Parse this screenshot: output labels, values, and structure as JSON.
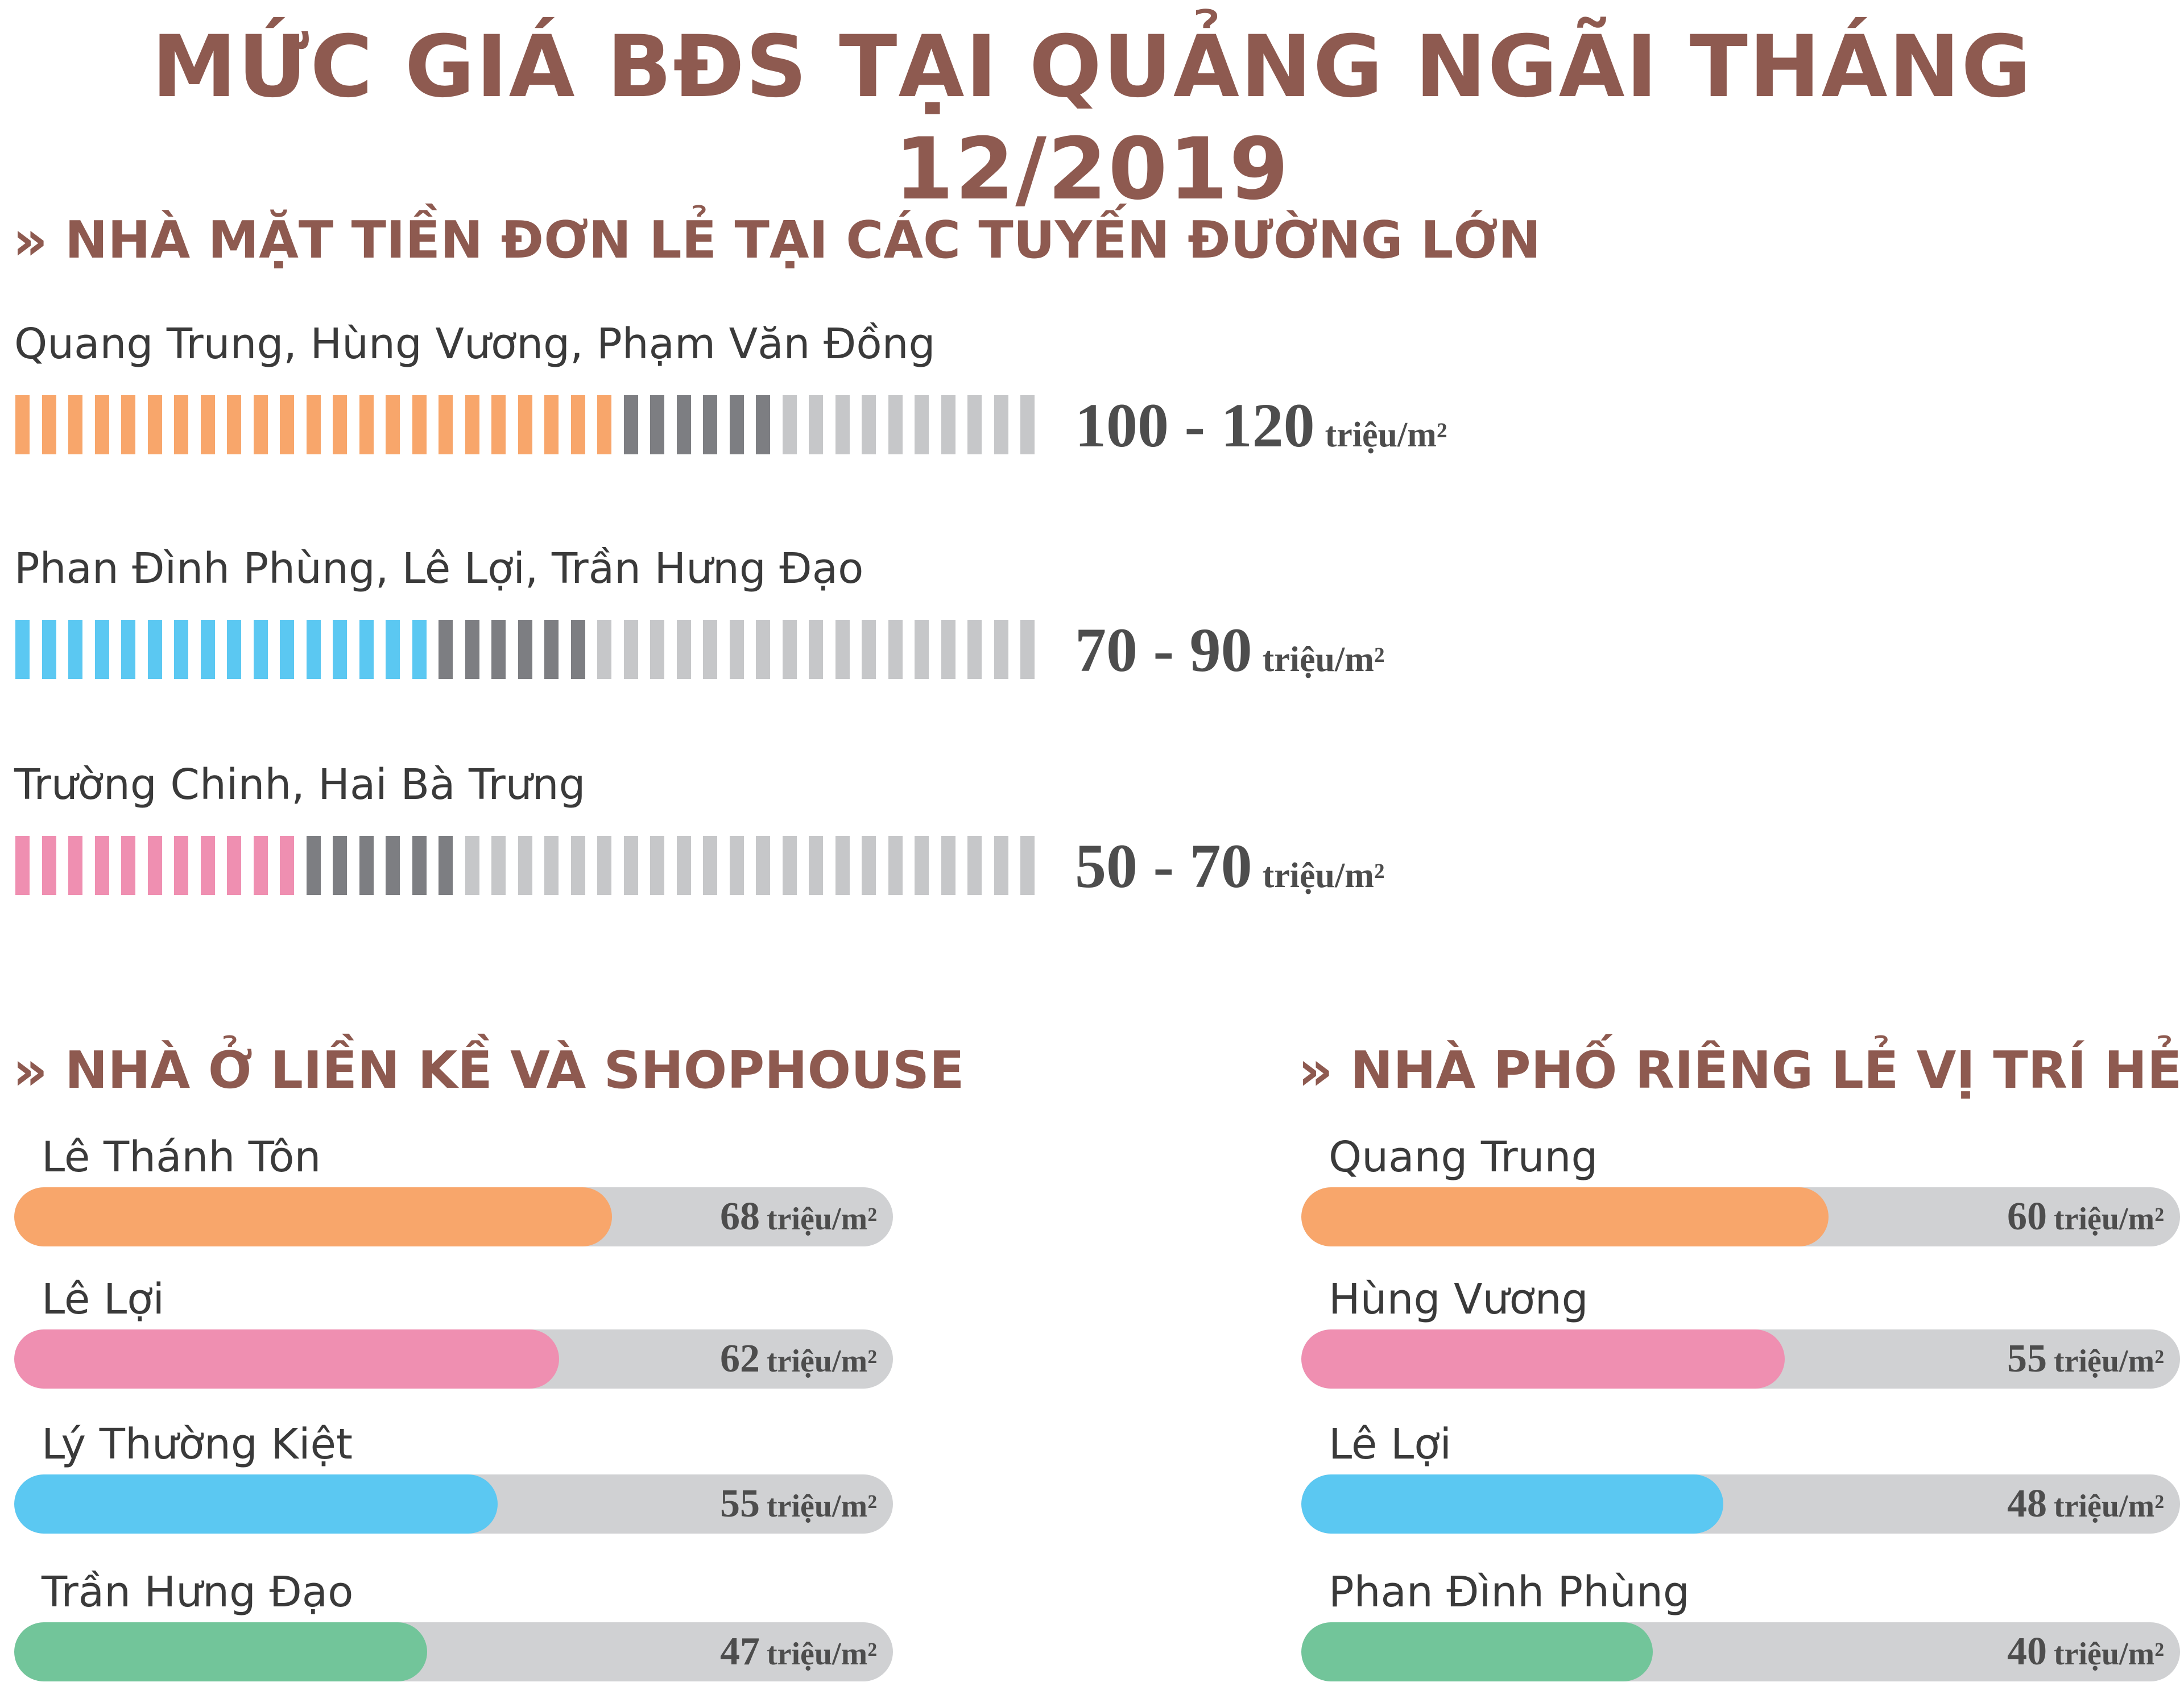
{
  "title": "MỨC GIÁ BĐS TẠI QUẢNG NGÃI THÁNG 12/2019",
  "colors": {
    "brown": "#8e5a50",
    "orange": "#f8a66b",
    "blue": "#5bc8f2",
    "pink": "#ef8fb1",
    "green": "#72c59a",
    "dark_gray": "#7d7e82",
    "light_gray": "#c6c7c9",
    "track": "#d0d1d3"
  },
  "chevron_icon": "double-chevron-right",
  "chart_data": [
    {
      "type": "bar",
      "title": "NHÀ MẶT TIỀN ĐƠN LẺ TẠI CÁC TUYẾN ĐƯỜNG LỚN",
      "unit": "triệu/m²",
      "categories": [
        "Quang Trung, Hùng Vương, Phạm Văn Đồng",
        "Phan Đình Phùng, Lê Lợi, Trần Hưng Đạo",
        "Trường Chinh, Hai Bà Trưng"
      ],
      "ranges": [
        [
          100,
          120
        ],
        [
          70,
          90
        ],
        [
          50,
          70
        ]
      ],
      "value_labels": [
        "100 - 120",
        "70 - 90",
        "50 - 70"
      ],
      "xlim": [
        0,
        160
      ],
      "colors": [
        "#f8a66b",
        "#5bc8f2",
        "#ef8fb1"
      ]
    },
    {
      "type": "bar",
      "title": "NHÀ Ở LIỀN KỀ VÀ SHOPHOUSE",
      "unit": "triệu/m²",
      "categories": [
        "Lê Thánh Tôn",
        "Lê Lợi",
        "Lý Thường Kiệt",
        "Trần Hưng Đạo"
      ],
      "values": [
        68,
        62,
        55,
        47
      ],
      "value_labels": [
        "68",
        "62",
        "55",
        "47"
      ],
      "xlim": [
        0,
        100
      ],
      "colors": [
        "#f8a66b",
        "#ef8fb1",
        "#5bc8f2",
        "#72c59a"
      ]
    },
    {
      "type": "bar",
      "title": "NHÀ PHỐ RIÊNG LẺ VỊ TRÍ HẺM",
      "unit": "triệu/m²",
      "categories": [
        "Quang Trung",
        "Hùng Vương",
        "Lê Lợi",
        "Phan Đình Phùng"
      ],
      "values": [
        60,
        55,
        48,
        40
      ],
      "value_labels": [
        "60",
        "55",
        "48",
        "40"
      ],
      "xlim": [
        0,
        100
      ],
      "colors": [
        "#f8a66b",
        "#ef8fb1",
        "#5bc8f2",
        "#72c59a"
      ]
    }
  ]
}
